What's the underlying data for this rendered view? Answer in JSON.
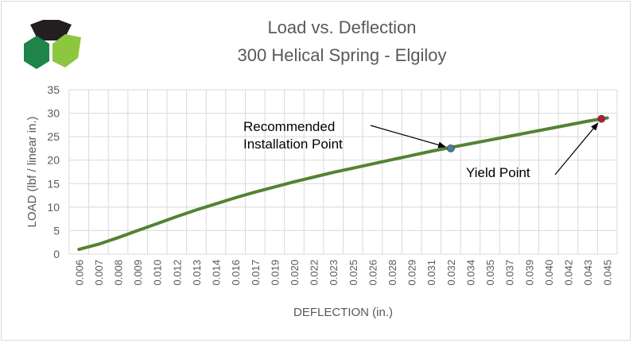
{
  "chart_data": {
    "type": "line",
    "title": "Load vs. Deflection",
    "subtitle": "300 Helical Spring - Elgiloy",
    "xlabel": "DEFLECTION (in.)",
    "ylabel": "LOAD (lbf / linear in.)",
    "ylim": [
      0,
      35
    ],
    "yticks": [
      "0",
      "5",
      "10",
      "15",
      "20",
      "25",
      "30",
      "35"
    ],
    "categories": [
      "0.006",
      "0.007",
      "0.008",
      "0.009",
      "0.010",
      "0.012",
      "0.013",
      "0.014",
      "0.016",
      "0.017",
      "0.019",
      "0.020",
      "0.022",
      "0.023",
      "0.025",
      "0.026",
      "0.028",
      "0.029",
      "0.031",
      "0.032",
      "0.034",
      "0.035",
      "0.037",
      "0.039",
      "0.040",
      "0.042",
      "0.043",
      "0.045"
    ],
    "series": [
      {
        "color": "#548235",
        "values": [
          1.0,
          2.1,
          3.5,
          5.0,
          6.5,
          8.0,
          9.4,
          10.7,
          12.0,
          13.2,
          14.3,
          15.4,
          16.4,
          17.4,
          18.3,
          19.2,
          20.1,
          21.0,
          21.9,
          22.7,
          23.5,
          24.3,
          25.1,
          25.9,
          26.7,
          27.5,
          28.3,
          29.0
        ]
      }
    ],
    "points": [
      {
        "label": "Recommended\nInstallation Point",
        "label_lines": [
          "Recommended",
          "Installation Point"
        ],
        "x_index": 19,
        "y": 22.5,
        "color": "#4a7ba8"
      },
      {
        "label": "Yield Point",
        "label_lines": [
          "Yield Point"
        ],
        "x_index": 26.7,
        "y": 28.8,
        "color": "#c0143c"
      }
    ],
    "grid": true,
    "colors": {
      "line": "#548235",
      "grid": "#d9d9d9",
      "text": "#595959"
    }
  },
  "logo": {
    "colors": [
      "#231f20",
      "#1e8449",
      "#8dc63f"
    ]
  }
}
